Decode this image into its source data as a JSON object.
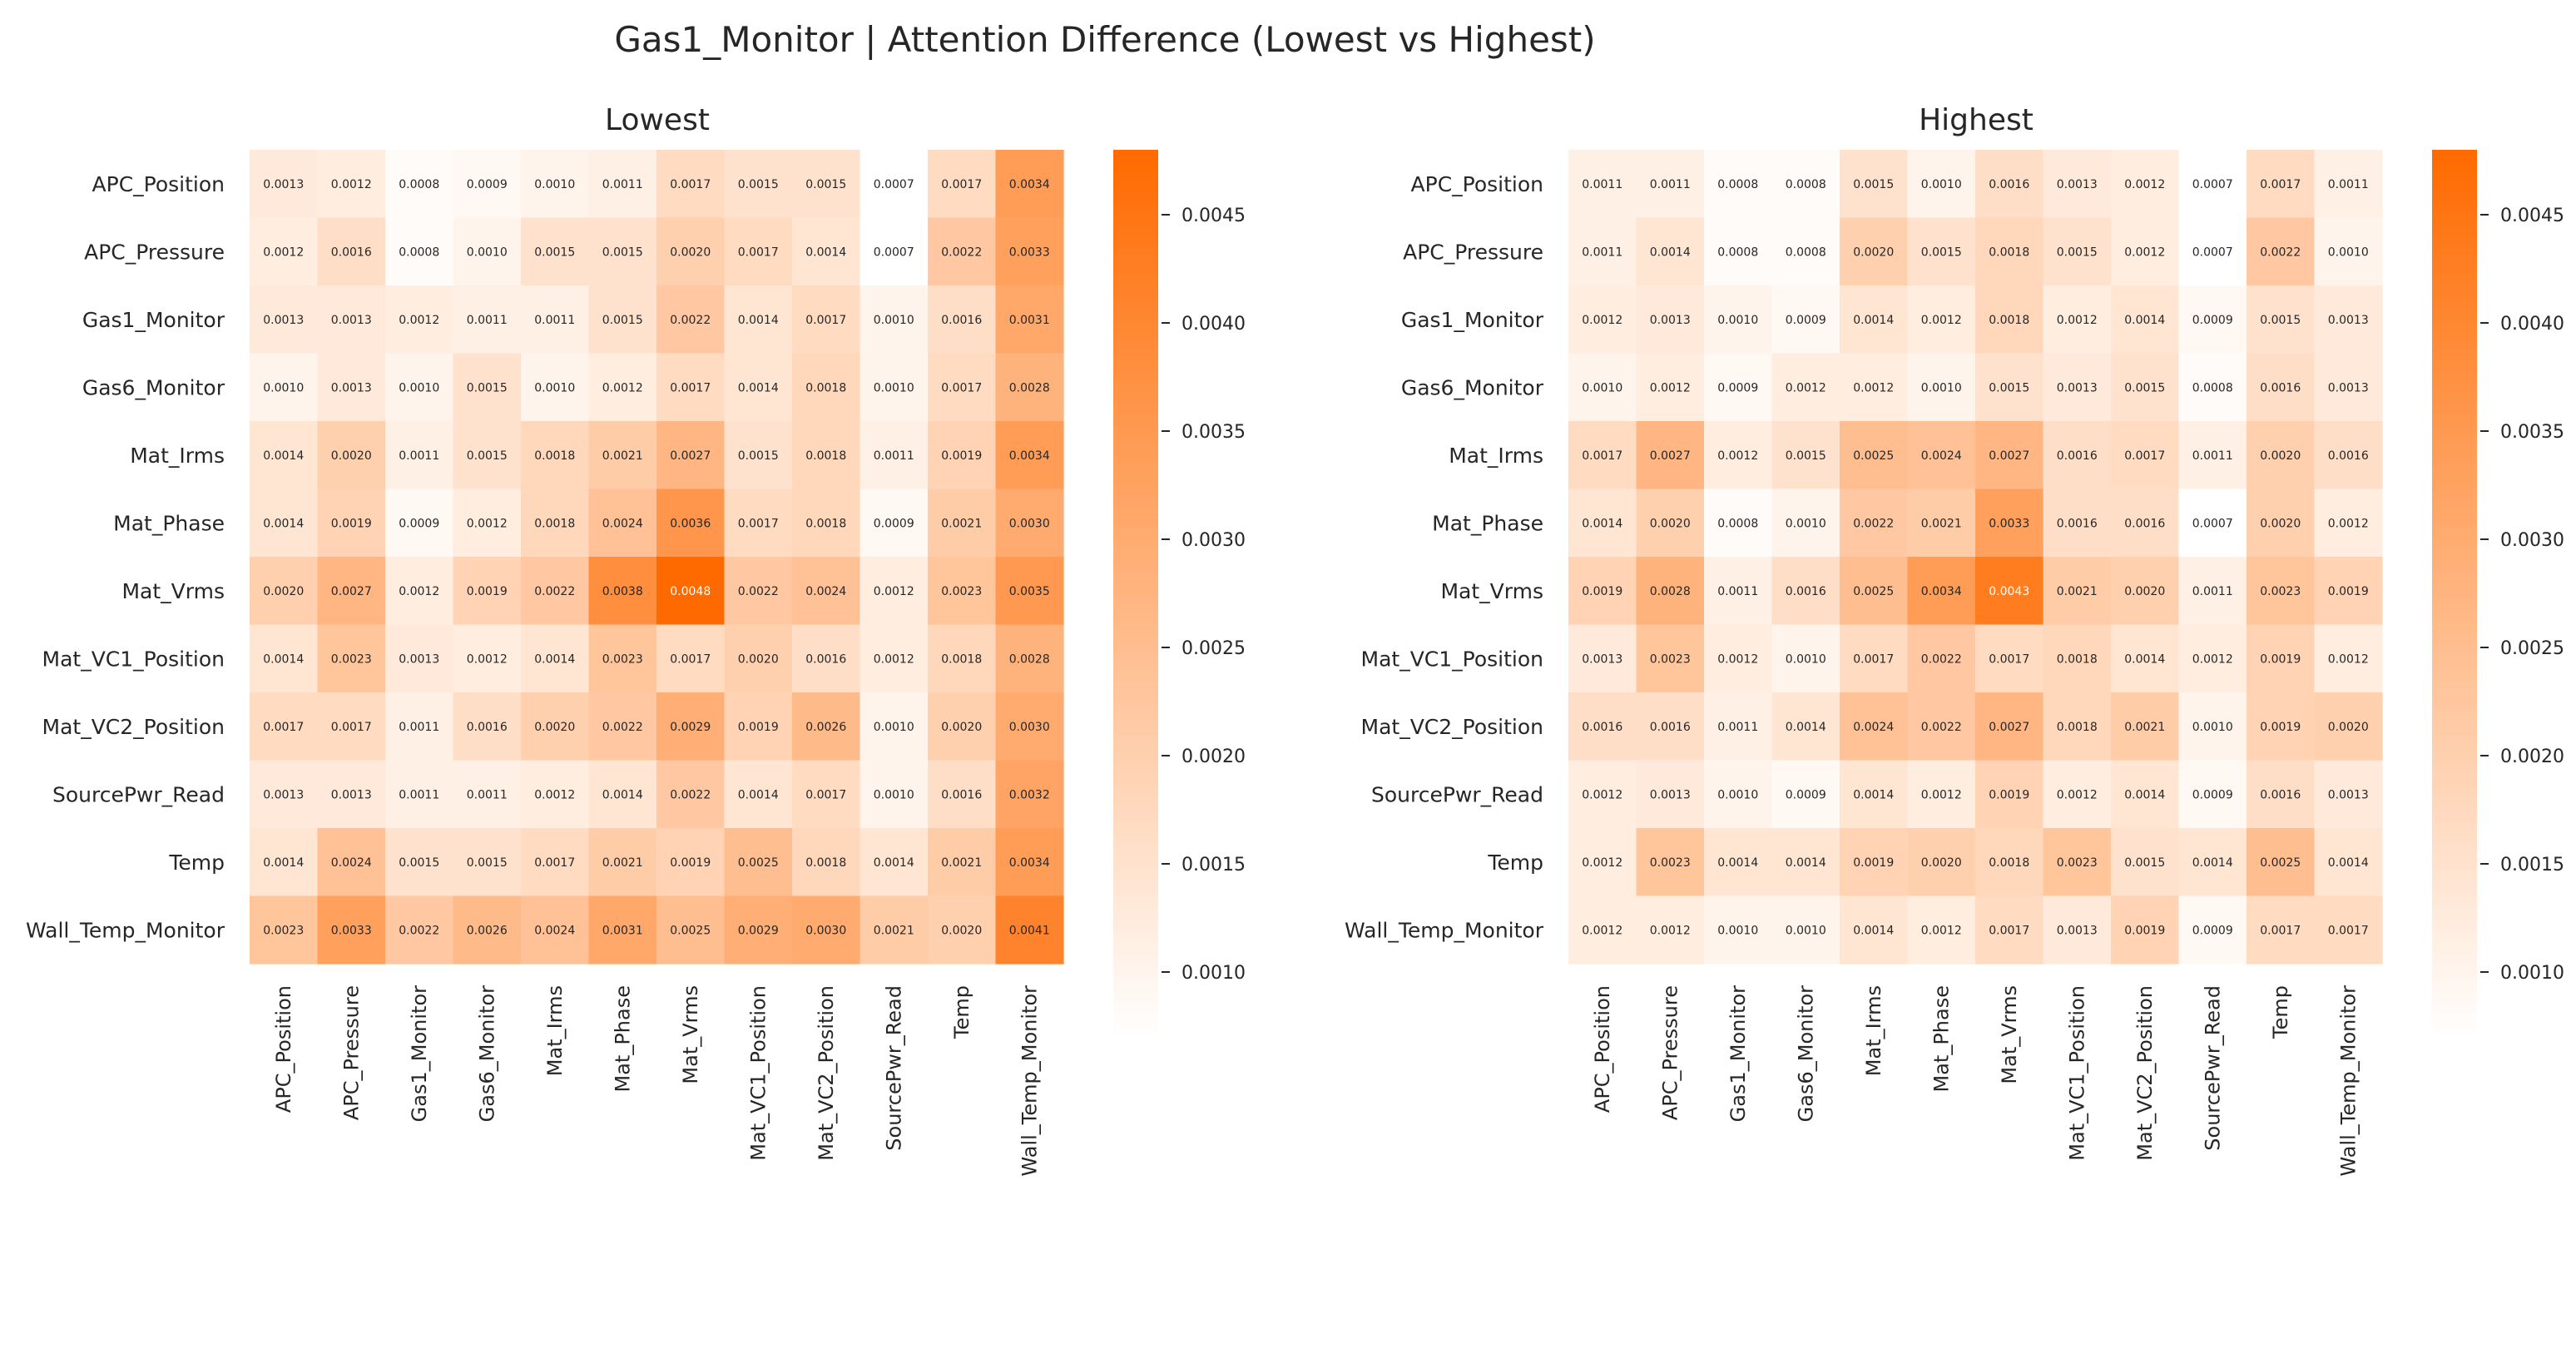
{
  "figure": {
    "title": "Gas1_Monitor | Attention Difference (Lowest vs Highest)"
  },
  "chart_data": [
    {
      "type": "heatmap",
      "title": "Lowest",
      "rows": [
        "APC_Position",
        "APC_Pressure",
        "Gas1_Monitor",
        "Gas6_Monitor",
        "Mat_Irms",
        "Mat_Phase",
        "Mat_Vrms",
        "Mat_VC1_Position",
        "Mat_VC2_Position",
        "SourcePwr_Read",
        "Temp",
        "Wall_Temp_Monitor"
      ],
      "cols": [
        "APC_Position",
        "APC_Pressure",
        "Gas1_Monitor",
        "Gas6_Monitor",
        "Mat_Irms",
        "Mat_Phase",
        "Mat_Vrms",
        "Mat_VC1_Position",
        "Mat_VC2_Position",
        "SourcePwr_Read",
        "Temp",
        "Wall_Temp_Monitor"
      ],
      "values": [
        [
          0.0013,
          0.0012,
          0.0008,
          0.0009,
          0.001,
          0.0011,
          0.0017,
          0.0015,
          0.0015,
          0.0007,
          0.0017,
          0.0034
        ],
        [
          0.0012,
          0.0016,
          0.0008,
          0.001,
          0.0015,
          0.0015,
          0.002,
          0.0017,
          0.0014,
          0.0007,
          0.0022,
          0.0033
        ],
        [
          0.0013,
          0.0013,
          0.0012,
          0.0011,
          0.0011,
          0.0015,
          0.0022,
          0.0014,
          0.0017,
          0.001,
          0.0016,
          0.0031
        ],
        [
          0.001,
          0.0013,
          0.001,
          0.0015,
          0.001,
          0.0012,
          0.0017,
          0.0014,
          0.0018,
          0.001,
          0.0017,
          0.0028
        ],
        [
          0.0014,
          0.002,
          0.0011,
          0.0015,
          0.0018,
          0.0021,
          0.0027,
          0.0015,
          0.0018,
          0.0011,
          0.0019,
          0.0034
        ],
        [
          0.0014,
          0.0019,
          0.0009,
          0.0012,
          0.0018,
          0.0024,
          0.0036,
          0.0017,
          0.0018,
          0.0009,
          0.0021,
          0.003
        ],
        [
          0.002,
          0.0027,
          0.0012,
          0.0019,
          0.0022,
          0.0038,
          0.0048,
          0.0022,
          0.0024,
          0.0012,
          0.0023,
          0.0035
        ],
        [
          0.0014,
          0.0023,
          0.0013,
          0.0012,
          0.0014,
          0.0023,
          0.0017,
          0.002,
          0.0016,
          0.0012,
          0.0018,
          0.0028
        ],
        [
          0.0017,
          0.0017,
          0.0011,
          0.0016,
          0.002,
          0.0022,
          0.0029,
          0.0019,
          0.0026,
          0.001,
          0.002,
          0.003
        ],
        [
          0.0013,
          0.0013,
          0.0011,
          0.0011,
          0.0012,
          0.0014,
          0.0022,
          0.0014,
          0.0017,
          0.001,
          0.0016,
          0.0032
        ],
        [
          0.0014,
          0.0024,
          0.0015,
          0.0015,
          0.0017,
          0.0021,
          0.0019,
          0.0025,
          0.0018,
          0.0014,
          0.0021,
          0.0034
        ],
        [
          0.0023,
          0.0033,
          0.0022,
          0.0026,
          0.0024,
          0.0031,
          0.0025,
          0.0029,
          0.003,
          0.0021,
          0.002,
          0.0041
        ]
      ],
      "colorbar": {
        "vmin": 0.0007,
        "vmax": 0.0048,
        "ticks": [
          "0.0010",
          "0.0015",
          "0.0020",
          "0.0025",
          "0.0030",
          "0.0035",
          "0.0040",
          "0.0045"
        ]
      },
      "colormap": {
        "low": "#ffffff",
        "high": "#ff6a00"
      }
    },
    {
      "type": "heatmap",
      "title": "Highest",
      "rows": [
        "APC_Position",
        "APC_Pressure",
        "Gas1_Monitor",
        "Gas6_Monitor",
        "Mat_Irms",
        "Mat_Phase",
        "Mat_Vrms",
        "Mat_VC1_Position",
        "Mat_VC2_Position",
        "SourcePwr_Read",
        "Temp",
        "Wall_Temp_Monitor"
      ],
      "cols": [
        "APC_Position",
        "APC_Pressure",
        "Gas1_Monitor",
        "Gas6_Monitor",
        "Mat_Irms",
        "Mat_Phase",
        "Mat_Vrms",
        "Mat_VC1_Position",
        "Mat_VC2_Position",
        "SourcePwr_Read",
        "Temp",
        "Wall_Temp_Monitor"
      ],
      "values": [
        [
          0.0011,
          0.0011,
          0.0008,
          0.0008,
          0.0015,
          0.001,
          0.0016,
          0.0013,
          0.0012,
          0.0007,
          0.0017,
          0.0011
        ],
        [
          0.0011,
          0.0014,
          0.0008,
          0.0008,
          0.002,
          0.0015,
          0.0018,
          0.0015,
          0.0012,
          0.0007,
          0.0022,
          0.001
        ],
        [
          0.0012,
          0.0013,
          0.001,
          0.0009,
          0.0014,
          0.0012,
          0.0018,
          0.0012,
          0.0014,
          0.0009,
          0.0015,
          0.0013
        ],
        [
          0.001,
          0.0012,
          0.0009,
          0.0012,
          0.0012,
          0.001,
          0.0015,
          0.0013,
          0.0015,
          0.0008,
          0.0016,
          0.0013
        ],
        [
          0.0017,
          0.0027,
          0.0012,
          0.0015,
          0.0025,
          0.0024,
          0.0027,
          0.0016,
          0.0017,
          0.0011,
          0.002,
          0.0016
        ],
        [
          0.0014,
          0.002,
          0.0008,
          0.001,
          0.0022,
          0.0021,
          0.0033,
          0.0016,
          0.0016,
          0.0007,
          0.002,
          0.0012
        ],
        [
          0.0019,
          0.0028,
          0.0011,
          0.0016,
          0.0025,
          0.0034,
          0.0043,
          0.0021,
          0.002,
          0.0011,
          0.0023,
          0.0019
        ],
        [
          0.0013,
          0.0023,
          0.0012,
          0.001,
          0.0017,
          0.0022,
          0.0017,
          0.0018,
          0.0014,
          0.0012,
          0.0019,
          0.0012
        ],
        [
          0.0016,
          0.0016,
          0.0011,
          0.0014,
          0.0024,
          0.0022,
          0.0027,
          0.0018,
          0.0021,
          0.001,
          0.0019,
          0.002
        ],
        [
          0.0012,
          0.0013,
          0.001,
          0.0009,
          0.0014,
          0.0012,
          0.0019,
          0.0012,
          0.0014,
          0.0009,
          0.0016,
          0.0013
        ],
        [
          0.0012,
          0.0023,
          0.0014,
          0.0014,
          0.0019,
          0.002,
          0.0018,
          0.0023,
          0.0015,
          0.0014,
          0.0025,
          0.0014
        ],
        [
          0.0012,
          0.0012,
          0.001,
          0.001,
          0.0014,
          0.0012,
          0.0017,
          0.0013,
          0.0019,
          0.0009,
          0.0017,
          0.0017
        ]
      ],
      "colorbar": {
        "vmin": 0.0007,
        "vmax": 0.0048,
        "ticks": [
          "0.0010",
          "0.0015",
          "0.0020",
          "0.0025",
          "0.0030",
          "0.0035",
          "0.0040",
          "0.0045"
        ]
      },
      "colormap": {
        "low": "#ffffff",
        "high": "#ff6a00"
      }
    }
  ]
}
